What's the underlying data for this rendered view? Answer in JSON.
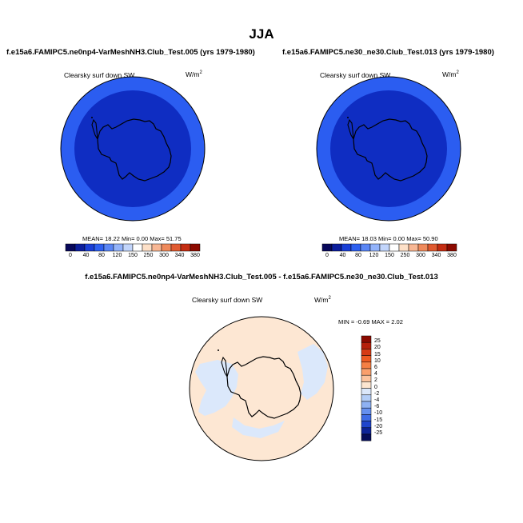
{
  "main_title": "JJA",
  "panels": [
    {
      "title": "f.e15a6.FAMIPC5.ne0np4-VarMeshNH3.Club_Test.005 (yrs 1979-1980)",
      "variable": "Clearsky surf down SW",
      "units_base": "W/m",
      "units_exp": "2",
      "stats": "MEAN=  18.22  Min=   0.00  Max=  51.75"
    },
    {
      "title": "f.e15a6.FAMIPC5.ne30_ne30.Club_Test.013 (yrs 1979-1980)",
      "variable": "Clearsky surf down SW",
      "units_base": "W/m",
      "units_exp": "2",
      "stats": "MEAN=  18.03  Min=   0.00  Max=  50.90"
    }
  ],
  "colorbar": {
    "ticks": [
      "0",
      "40",
      "80",
      "120",
      "150",
      "250",
      "300",
      "340",
      "380"
    ],
    "colors": [
      "#08085a",
      "#0c1e9c",
      "#1a3fd6",
      "#2e60f0",
      "#5a86f5",
      "#93b3fa",
      "#c2d5fb",
      "#ffffff",
      "#fde0c8",
      "#f8b794",
      "#ef8a5c",
      "#e05a30",
      "#c42d12",
      "#8c0a00"
    ]
  },
  "diff_panel": {
    "title": "f.e15a6.FAMIPC5.ne0np4-VarMeshNH3.Club_Test.005 - f.e15a6.FAMIPC5.ne30_ne30.Club_Test.013",
    "variable": "Clearsky surf down SW",
    "units_base": "W/m",
    "units_exp": "2",
    "minmax": "MIN =  -0.69 MAX =   2.02",
    "legend_labels": [
      "25",
      "20",
      "15",
      "10",
      "6",
      "4",
      "2",
      "0",
      "-2",
      "-4",
      "-6",
      "-10",
      "-15",
      "-20",
      "-25"
    ],
    "legend_colors": [
      "#8b0a00",
      "#b51f0a",
      "#d63a14",
      "#ee5a22",
      "#f57f44",
      "#fa9f6c",
      "#fcc39e",
      "#fde5d0",
      "#dbe7fa",
      "#b3cdf7",
      "#8eb1f3",
      "#6690ef",
      "#3f6ce6",
      "#1f45cc",
      "#0d2396",
      "#050c58"
    ]
  },
  "map_colors": {
    "outer_ring": "#2b5df1",
    "inner_disk": "#0f2dc2",
    "diff_background": "#fde7d3",
    "diff_sea_ice": "#dbe8fb",
    "coast": "#000000"
  }
}
